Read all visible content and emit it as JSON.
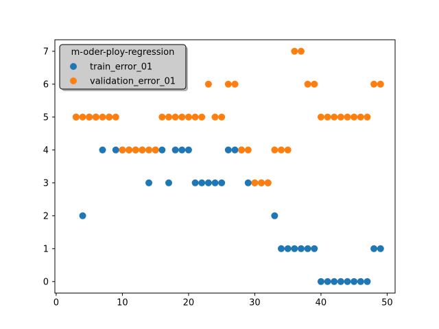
{
  "chart_data": {
    "type": "scatter",
    "title": "",
    "xlabel": "",
    "ylabel": "",
    "xlim": [
      -0.2,
      51.2
    ],
    "ylim": [
      -0.35,
      7.35
    ],
    "xticks": [
      0,
      10,
      20,
      30,
      40,
      50
    ],
    "yticks": [
      0,
      1,
      2,
      3,
      4,
      5,
      6,
      7
    ],
    "legend": {
      "title": "m-oder-ploy-regression",
      "placement": "top-left"
    },
    "series": [
      {
        "name": "train_error_01",
        "color": "#1f77b4",
        "x": [
          3,
          4,
          5,
          6,
          7,
          8,
          9,
          10,
          11,
          12,
          13,
          14,
          15,
          16,
          17,
          18,
          19,
          20,
          21,
          22,
          23,
          24,
          25,
          26,
          27,
          28,
          29,
          30,
          31,
          32,
          33,
          34,
          35,
          36,
          37,
          38,
          39,
          40,
          41,
          42,
          43,
          44,
          45,
          46,
          47,
          48,
          49
        ],
        "y": [
          5,
          2,
          5,
          5,
          4,
          5,
          4,
          4,
          4,
          4,
          4,
          3,
          4,
          4,
          3,
          4,
          4,
          4,
          3,
          3,
          3,
          3,
          3,
          4,
          4,
          4,
          3,
          3,
          3,
          3,
          2,
          1,
          1,
          1,
          1,
          1,
          1,
          0,
          0,
          0,
          0,
          0,
          0,
          0,
          0,
          1,
          1
        ]
      },
      {
        "name": "validation_error_01",
        "color": "#ff7f0e",
        "x": [
          3,
          4,
          5,
          6,
          7,
          8,
          9,
          10,
          11,
          12,
          13,
          14,
          15,
          16,
          17,
          18,
          19,
          20,
          21,
          22,
          23,
          24,
          25,
          26,
          27,
          28,
          29,
          30,
          31,
          32,
          33,
          34,
          35,
          36,
          37,
          38,
          39,
          40,
          41,
          42,
          43,
          44,
          45,
          46,
          47,
          48,
          49
        ],
        "y": [
          5,
          5,
          5,
          5,
          5,
          5,
          5,
          4,
          4,
          4,
          4,
          4,
          4,
          5,
          5,
          5,
          5,
          5,
          5,
          5,
          6,
          5,
          5,
          6,
          6,
          4,
          4,
          3,
          3,
          3,
          4,
          4,
          4,
          7,
          7,
          6,
          6,
          5,
          5,
          5,
          5,
          5,
          5,
          5,
          5,
          6,
          6
        ]
      }
    ]
  }
}
